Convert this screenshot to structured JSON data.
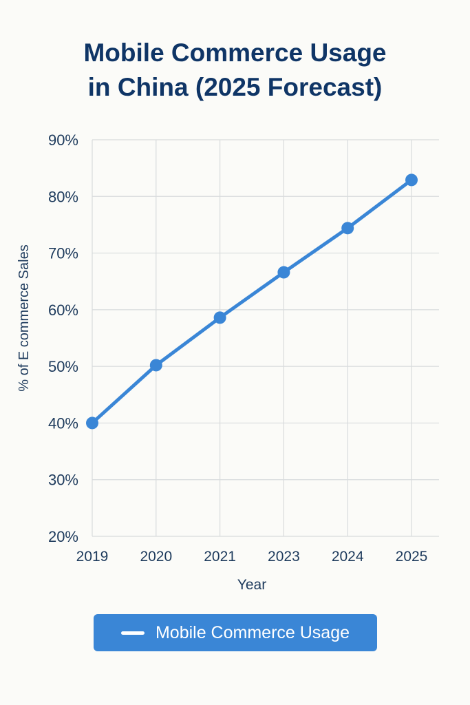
{
  "chart_data": {
    "type": "line",
    "title_lines": [
      "Mobile Commerce Usage",
      "in China (2025 Forecast)"
    ],
    "xlabel": "Year",
    "ylabel": "% of E commerce Sales",
    "categories": [
      "2019",
      "2020",
      "2021",
      "2023",
      "2024",
      "2025"
    ],
    "y_ticks": [
      "20%",
      "30%",
      "40%",
      "50%",
      "60%",
      "70%",
      "80%",
      "90%"
    ],
    "ylim": [
      20,
      90
    ],
    "grid": true,
    "series": [
      {
        "name": "Mobile Commerce Usage",
        "values": [
          40,
          50.2,
          58.6,
          66.6,
          74.4,
          82.9
        ],
        "color": "#3a86d6"
      }
    ],
    "legend": {
      "placement": "bottom-center",
      "background": "#3a86d6"
    }
  },
  "colors": {
    "title": "#0f3566",
    "axis_text": "#1d3a5c",
    "grid": "#d8dbdc",
    "background": "#fbfbf8"
  }
}
